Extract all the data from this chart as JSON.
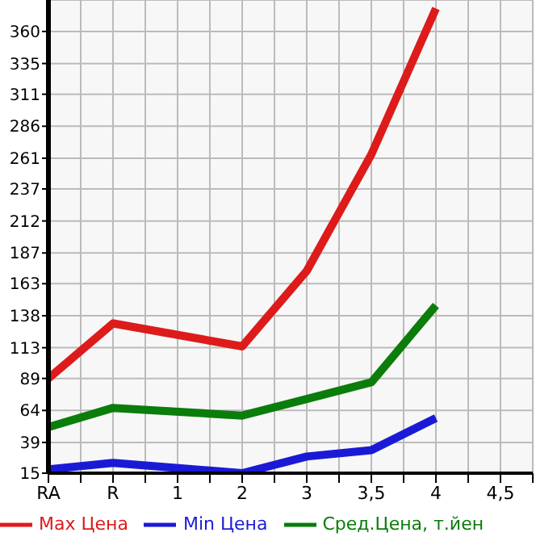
{
  "chart_data": {
    "type": "line",
    "categories": [
      "RA",
      "R",
      "1",
      "2",
      "3",
      "3,5",
      "4",
      "4,5"
    ],
    "series": [
      {
        "name": "Max Цена",
        "color": "#dd1b1b",
        "values": [
          89,
          132,
          null,
          114,
          173,
          264,
          378,
          null
        ]
      },
      {
        "name": "Min Цена",
        "color": "#1a1ad6",
        "values": [
          18,
          23,
          null,
          15,
          28,
          33,
          58,
          null
        ]
      },
      {
        "name": "Сред.Цена, т.йен",
        "color": "#0a7d0a",
        "values": [
          51,
          66,
          null,
          60,
          73,
          86,
          146,
          null
        ]
      }
    ],
    "ylim": [
      15,
      384.6
    ],
    "yticks": [
      15,
      39,
      64,
      89,
      113,
      138,
      163,
      187,
      212,
      237,
      261,
      286,
      311,
      335,
      360
    ],
    "grid": true,
    "legend": "bottom",
    "marker": "none",
    "line_style": "solid"
  }
}
